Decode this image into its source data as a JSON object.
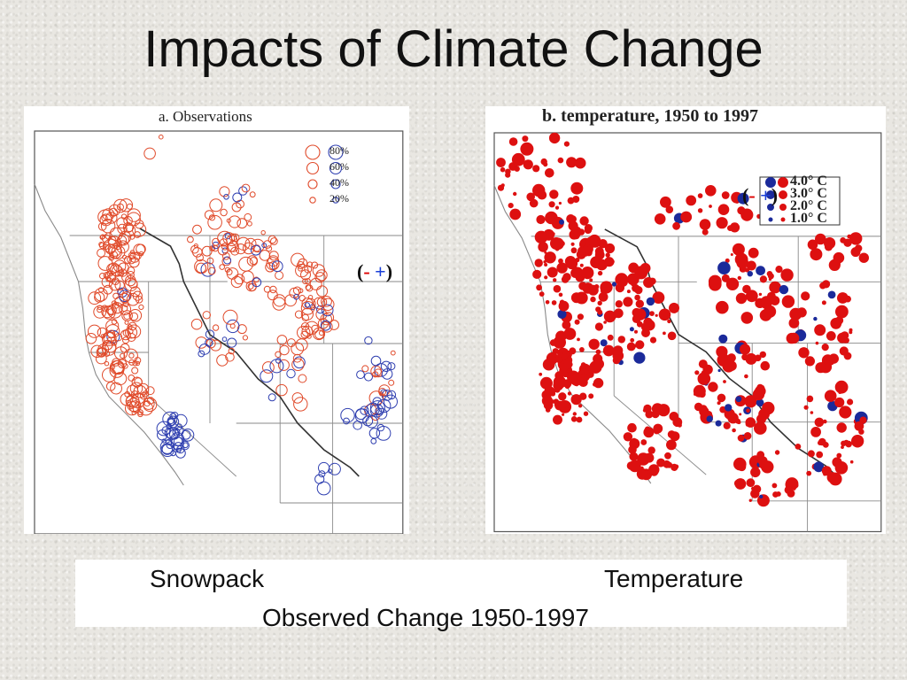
{
  "slide": {
    "title": "Impacts of Climate Change"
  },
  "colors": {
    "decrease": "#e04a2a",
    "increase": "#2f3fb0",
    "decrease_solid": "#dd1010",
    "increase_solid": "#1b2a9a",
    "boundary": "#8a8a8a"
  },
  "panel_a": {
    "title": "a. Observations",
    "legend": [
      "80%",
      "60%",
      "40%",
      "20%"
    ],
    "sign_note": {
      "open": "(",
      "minus": "-",
      "plus": "+",
      "close": ")"
    }
  },
  "panel_b": {
    "title": "b. temperature,  1950 to  1997",
    "legend": [
      "4.0° C",
      "3.0° C",
      "2.0° C",
      "1.0° C"
    ],
    "sign_note": {
      "open": "(",
      "minus": "-",
      "plus": "+",
      "close": ")"
    }
  },
  "captions": {
    "left": "Snowpack",
    "right": "Temperature",
    "bottom": "Observed Change 1950-1997"
  }
}
